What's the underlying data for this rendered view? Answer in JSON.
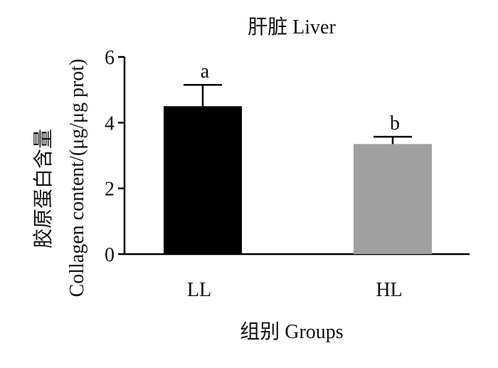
{
  "chart_data": {
    "type": "bar",
    "title": "肝脏  Liver",
    "xlabel": "组别  Groups",
    "ylabel_line1": "胶原蛋白含量",
    "ylabel_line2": "Collagen content/(μg/μg prot)",
    "categories": [
      "LL",
      "HL"
    ],
    "values": [
      4.5,
      3.35
    ],
    "errors": [
      0.65,
      0.22
    ],
    "significance": [
      "a",
      "b"
    ],
    "colors": [
      "#000000",
      "#a0a0a0"
    ],
    "ylim": [
      0,
      6
    ],
    "yticks": [
      "0",
      "2",
      "4",
      "6"
    ],
    "grid": false,
    "legend": "none"
  }
}
